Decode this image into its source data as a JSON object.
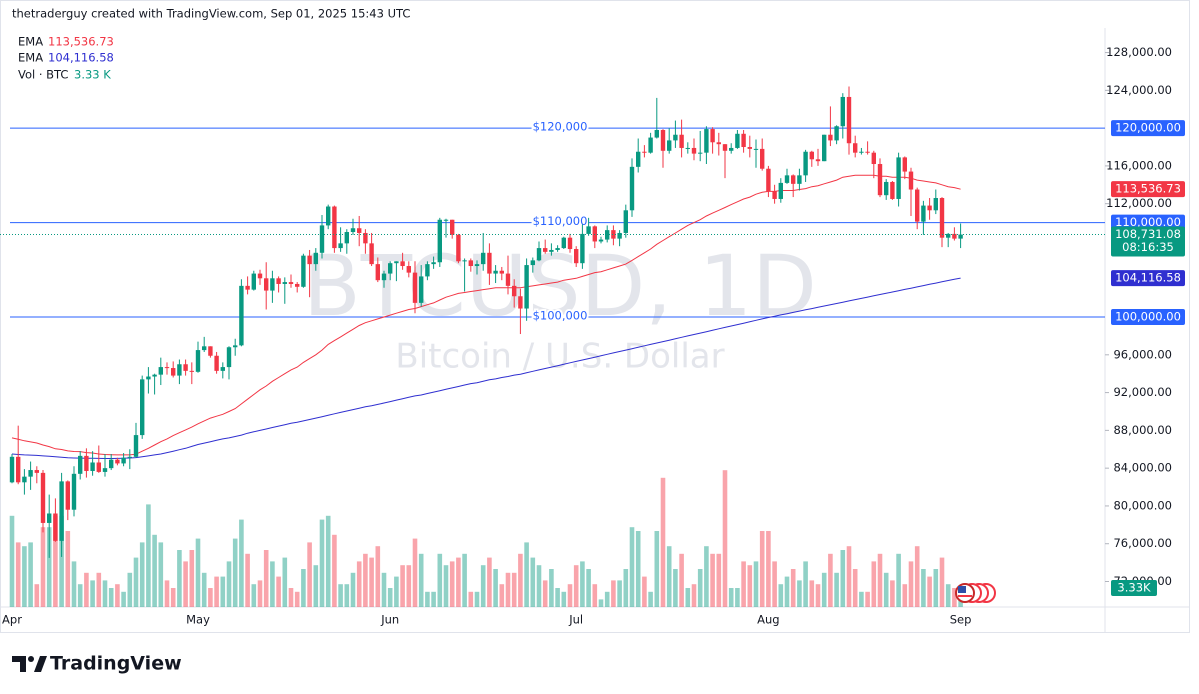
{
  "header": {
    "author_line": "thetraderguy created with TradingView.com, Sep 01, 2025 15:43 UTC",
    "brand": "TradingView"
  },
  "chart_data": {
    "type": "candlestick",
    "watermark_symbol": "BTCUSD, 1D",
    "watermark_name": "Bitcoin / U.S. Dollar",
    "up_color": "#089981",
    "down_color": "#f23645",
    "categories": [
      "Apr",
      null,
      null,
      null,
      null,
      null,
      null,
      null,
      null,
      null,
      null,
      null,
      null,
      null,
      null,
      null,
      null,
      null,
      null,
      null,
      null,
      null,
      null,
      null,
      null,
      null,
      null,
      null,
      null,
      null,
      "May",
      null,
      null,
      null,
      null,
      null,
      null,
      null,
      null,
      null,
      null,
      null,
      null,
      null,
      null,
      null,
      null,
      null,
      null,
      null,
      null,
      null,
      null,
      null,
      null,
      null,
      null,
      null,
      null,
      null,
      null,
      "Jun",
      null,
      null,
      null,
      null,
      null,
      null,
      null,
      null,
      null,
      null,
      null,
      null,
      null,
      null,
      null,
      null,
      null,
      null,
      null,
      null,
      null,
      null,
      null,
      null,
      null,
      null,
      null,
      null,
      null,
      "Jul",
      null,
      null,
      null,
      null,
      null,
      null,
      null,
      null,
      null,
      null,
      null,
      null,
      null,
      null,
      null,
      null,
      null,
      null,
      null,
      null,
      null,
      null,
      null,
      null,
      null,
      null,
      null,
      null,
      null,
      null,
      "Aug",
      null,
      null,
      null,
      null,
      null,
      null,
      null,
      null,
      null,
      null,
      null,
      null,
      null,
      null,
      null,
      null,
      null,
      null,
      null,
      null,
      null,
      null,
      null,
      null,
      null,
      null,
      null,
      null,
      null,
      null,
      "Sep"
    ],
    "open": [
      82500,
      85200,
      82500,
      83100,
      83800,
      83500,
      78200,
      79200,
      76300,
      82600,
      79600,
      83400,
      85300,
      83700,
      84600,
      83600,
      84000,
      84900,
      84500,
      85100,
      85200,
      87500,
      93400,
      93700,
      93900,
      94700,
      94600,
      93800,
      95000,
      94300,
      94200,
      96500,
      96900,
      95900,
      94300,
      94700,
      96800,
      97000,
      103300,
      102900,
      104600,
      104100,
      102800,
      104100,
      103500,
      103700,
      103500,
      103200,
      106500,
      105600,
      106800,
      109700,
      111700,
      107300,
      107800,
      109000,
      109400,
      108900,
      107800,
      105600,
      103900,
      104600,
      105700,
      105900,
      105400,
      104700,
      101500,
      104300,
      105600,
      105800,
      110300,
      110300,
      108700,
      105900,
      106000,
      105400,
      105600,
      106800,
      104600,
      104900,
      104600,
      103300,
      102200,
      100900,
      105500,
      106000,
      107300,
      106900,
      107100,
      107300,
      108400,
      107200,
      105700,
      108800,
      109600,
      108000,
      108200,
      109200,
      108300,
      108900,
      111300,
      115900,
      117500,
      117400,
      119000,
      119800,
      117600,
      118700,
      119300,
      117900,
      117900,
      117300,
      117400,
      119900,
      118500,
      118300,
      117600,
      117900,
      119400,
      118000,
      117800,
      117800,
      115700,
      113300,
      112500,
      114200,
      115000,
      114100,
      115000,
      117500,
      116700,
      116500,
      119300,
      118700,
      120200,
      123300,
      118400,
      117400,
      117500,
      117400,
      116200,
      112900,
      114300,
      112500,
      116900,
      115400,
      113500,
      110100,
      111800,
      111300,
      112600,
      108400,
      108800,
      108300
    ],
    "high": [
      85500,
      88500,
      83900,
      84700,
      84200,
      83800,
      81200,
      80800,
      83500,
      82700,
      84200,
      85800,
      86100,
      85800,
      86400,
      85500,
      85500,
      85100,
      85600,
      86000,
      88800,
      93800,
      94700,
      94000,
      95700,
      95200,
      95300,
      95500,
      95500,
      95200,
      97400,
      97900,
      96900,
      96300,
      95200,
      96900,
      97700,
      104000,
      104300,
      104900,
      105000,
      105800,
      104900,
      104300,
      104200,
      104500,
      103700,
      106700,
      107100,
      107300,
      110800,
      111900,
      111800,
      109500,
      109300,
      110400,
      110700,
      109300,
      108900,
      106300,
      104900,
      105900,
      105900,
      106800,
      105900,
      105900,
      105500,
      105900,
      106400,
      110500,
      110400,
      110300,
      108800,
      106200,
      106200,
      106000,
      108900,
      107800,
      105500,
      105300,
      106500,
      104000,
      103000,
      106200,
      106300,
      108000,
      108200,
      107800,
      107600,
      108500,
      108800,
      107500,
      109800,
      110500,
      109700,
      108500,
      109700,
      109700,
      109200,
      111900,
      116800,
      118900,
      118200,
      119500,
      123200,
      119900,
      120000,
      120800,
      120900,
      118500,
      118900,
      119700,
      120200,
      120100,
      119500,
      118300,
      118400,
      119800,
      119800,
      119200,
      118800,
      118900,
      116000,
      114000,
      114700,
      115700,
      115100,
      115700,
      117700,
      117600,
      117800,
      119300,
      122300,
      120300,
      123700,
      124400,
      119200,
      117900,
      118600,
      117600,
      116800,
      114600,
      114400,
      117400,
      117000,
      115800,
      113700,
      112300,
      112600,
      113500,
      112700,
      108900,
      109500,
      109900
    ],
    "low": [
      82400,
      82300,
      81200,
      81700,
      82400,
      77200,
      74500,
      76200,
      74600,
      78500,
      78900,
      82800,
      83000,
      83200,
      83500,
      83100,
      83800,
      84300,
      84200,
      83900,
      85100,
      87100,
      91900,
      91800,
      92800,
      93900,
      93600,
      92900,
      93800,
      92900,
      94100,
      96300,
      95700,
      94000,
      93500,
      93400,
      95900,
      96900,
      102400,
      102800,
      103400,
      100800,
      101500,
      102600,
      101400,
      103100,
      102600,
      103100,
      102100,
      104900,
      106200,
      109300,
      106800,
      106900,
      106700,
      108700,
      107500,
      106700,
      105400,
      103700,
      103100,
      103900,
      103800,
      105000,
      104200,
      100400,
      101100,
      103900,
      105100,
      105300,
      108400,
      108300,
      105700,
      102700,
      104800,
      104500,
      104900,
      103400,
      103600,
      103900,
      102400,
      101000,
      98200,
      99600,
      104700,
      105900,
      106700,
      106500,
      106900,
      107200,
      106800,
      105300,
      105100,
      108600,
      107300,
      107800,
      107900,
      107600,
      107500,
      108400,
      110600,
      115300,
      116900,
      117300,
      118900,
      115800,
      117300,
      117900,
      116900,
      117300,
      116600,
      116500,
      116200,
      117300,
      117100,
      114700,
      117300,
      117800,
      117400,
      116900,
      115800,
      115500,
      112700,
      112000,
      112100,
      114100,
      112700,
      113400,
      114300,
      115900,
      116000,
      116500,
      118100,
      118300,
      118900,
      117200,
      116900,
      117200,
      117200,
      114700,
      112700,
      112400,
      112400,
      111700,
      114600,
      110700,
      109300,
      108700,
      110300,
      110900,
      107400,
      107400,
      108100,
      107300
    ],
    "close": [
      85200,
      82500,
      83100,
      83800,
      83500,
      78200,
      79200,
      76300,
      82600,
      79600,
      83400,
      85300,
      83700,
      84600,
      83600,
      84000,
      84900,
      84500,
      85100,
      85200,
      87500,
      93400,
      93700,
      93900,
      94700,
      94600,
      93800,
      95000,
      94300,
      94200,
      96500,
      96900,
      95900,
      94300,
      94700,
      96800,
      97000,
      103300,
      102900,
      104600,
      104100,
      102800,
      104100,
      103500,
      103700,
      103500,
      103200,
      106500,
      105600,
      106800,
      109700,
      111700,
      107300,
      107800,
      109000,
      109400,
      108900,
      107800,
      105600,
      103900,
      104600,
      105700,
      105900,
      105400,
      104700,
      101500,
      104300,
      105600,
      105800,
      110300,
      110300,
      108700,
      105900,
      106000,
      105400,
      105600,
      106800,
      104600,
      104900,
      104600,
      103300,
      102200,
      100900,
      105500,
      106000,
      107300,
      106900,
      107100,
      107300,
      108400,
      107200,
      105700,
      108800,
      109600,
      108000,
      108200,
      109200,
      108300,
      108900,
      111300,
      115900,
      117500,
      117400,
      119000,
      119800,
      117600,
      118700,
      119300,
      117900,
      117900,
      117300,
      117400,
      119900,
      118500,
      118300,
      117600,
      117900,
      119400,
      118000,
      117800,
      117800,
      115700,
      113300,
      112500,
      114200,
      115000,
      114100,
      115000,
      117500,
      116700,
      116500,
      119300,
      118700,
      120200,
      123300,
      118400,
      117400,
      117500,
      117400,
      116200,
      112900,
      114300,
      112500,
      116900,
      115400,
      113500,
      110100,
      111800,
      111300,
      112600,
      108400,
      108800,
      108300,
      108731.08
    ],
    "last_close_label": "108,731.08",
    "countdown": "08:16:35",
    "series": [
      {
        "name": "EMA",
        "color": "#f23645",
        "value_label": "113,536.73",
        "values": [
          87200,
          87050,
          86900,
          86780,
          86660,
          86450,
          86280,
          86050,
          85980,
          85830,
          85760,
          85750,
          85650,
          85600,
          85500,
          85450,
          85420,
          85400,
          85400,
          85400,
          85480,
          85800,
          86100,
          86450,
          86800,
          87100,
          87450,
          87750,
          88050,
          88350,
          88700,
          89000,
          89300,
          89500,
          89700,
          90000,
          90300,
          90800,
          91300,
          91800,
          92300,
          92700,
          93200,
          93600,
          94000,
          94400,
          94700,
          95200,
          95600,
          96000,
          96500,
          97100,
          97500,
          97900,
          98300,
          98700,
          99100,
          99400,
          99600,
          99800,
          100000,
          100200,
          100400,
          100600,
          100800,
          100900,
          101100,
          101300,
          101500,
          101800,
          102100,
          102300,
          102500,
          102600,
          102700,
          102800,
          102900,
          103000,
          103100,
          103100,
          103100,
          103100,
          103100,
          103200,
          103300,
          103400,
          103500,
          103600,
          103700,
          103900,
          104000,
          104100,
          104300,
          104500,
          104700,
          104800,
          105000,
          105200,
          105400,
          105600,
          106000,
          106400,
          106800,
          107200,
          107700,
          108100,
          108500,
          108900,
          109300,
          109700,
          110000,
          110300,
          110700,
          111000,
          111300,
          111600,
          111900,
          112200,
          112500,
          112700,
          113000,
          113200,
          113300,
          113300,
          113400,
          113400,
          113400,
          113500,
          113600,
          113800,
          113900,
          114100,
          114300,
          114500,
          114800,
          114900,
          115000,
          115000,
          115000,
          115000,
          114900,
          114900,
          114800,
          114800,
          114800,
          114700,
          114500,
          114400,
          114300,
          114200,
          114000,
          113800,
          113700,
          113536.73
        ]
      },
      {
        "name": "EMA",
        "color": "#2f2fd0",
        "value_label": "104,116.58",
        "values": [
          85500,
          85450,
          85400,
          85380,
          85350,
          85300,
          85250,
          85200,
          85150,
          85100,
          85080,
          85060,
          85050,
          85040,
          85030,
          85020,
          85020,
          85030,
          85050,
          85080,
          85120,
          85200,
          85300,
          85400,
          85500,
          85650,
          85800,
          85950,
          86100,
          86300,
          86500,
          86650,
          86800,
          86950,
          87100,
          87200,
          87350,
          87500,
          87700,
          87850,
          88000,
          88150,
          88300,
          88450,
          88600,
          88750,
          88850,
          89000,
          89150,
          89300,
          89450,
          89600,
          89750,
          89900,
          90050,
          90200,
          90350,
          90500,
          90600,
          90750,
          90900,
          91050,
          91200,
          91350,
          91500,
          91650,
          91750,
          91900,
          92050,
          92200,
          92350,
          92500,
          92650,
          92800,
          92950,
          93050,
          93200,
          93350,
          93450,
          93600,
          93700,
          93850,
          93950,
          94100,
          94250,
          94400,
          94550,
          94700,
          94850,
          95000,
          95150,
          95300,
          95450,
          95600,
          95750,
          95900,
          96050,
          96200,
          96350,
          96500,
          96650,
          96800,
          96950,
          97100,
          97250,
          97400,
          97550,
          97700,
          97850,
          98000,
          98150,
          98300,
          98450,
          98600,
          98750,
          98900,
          99050,
          99200,
          99350,
          99500,
          99650,
          99800,
          99950,
          100085,
          100220,
          100355,
          100490,
          100625,
          100760,
          100895,
          101030,
          101165,
          101300,
          101435,
          101570,
          101705,
          101840,
          101975,
          102110,
          102245,
          102380,
          102515,
          102650,
          102785,
          102920,
          103055,
          103190,
          103325,
          103460,
          103595,
          103730,
          103865,
          104000,
          104116.58
        ]
      }
    ],
    "volume": {
      "name": "Vol · BTC",
      "legend_label": "3.33 K",
      "tag_label": "3.33K",
      "vlim": [
        0,
        50
      ],
      "values": [
        24,
        17,
        16,
        17,
        6,
        21,
        21,
        24,
        24,
        20,
        12,
        6,
        9,
        7,
        9,
        7,
        5,
        6,
        4,
        9,
        13,
        17,
        27,
        19,
        17,
        7,
        5,
        15,
        12,
        15,
        18,
        9,
        5,
        8,
        8,
        12,
        18,
        23,
        14,
        6,
        7,
        15,
        12,
        8,
        13,
        5,
        4,
        10,
        17,
        11,
        23,
        24,
        19,
        6,
        6,
        9,
        12,
        14,
        13,
        16,
        9,
        5,
        8,
        11,
        11,
        18,
        14,
        4,
        4,
        14,
        11,
        12,
        13,
        14,
        4,
        4,
        11,
        13,
        10,
        6,
        9,
        9,
        14,
        17,
        13,
        11,
        7,
        10,
        5,
        4,
        6,
        11,
        12,
        10,
        6,
        2,
        4,
        7,
        7,
        10,
        21,
        20,
        8,
        4,
        20,
        34,
        16,
        10,
        14,
        5,
        6,
        10,
        16,
        14,
        14,
        36,
        5,
        5,
        12,
        11,
        12,
        20,
        20,
        12,
        6,
        8,
        10,
        7,
        12,
        7,
        6,
        9,
        14,
        9,
        15,
        16,
        10,
        4,
        4,
        12,
        14,
        9,
        7,
        14,
        6,
        12,
        16,
        10,
        8,
        10,
        13,
        6,
        5,
        3.33
      ]
    },
    "hline_color": "#2962ff",
    "hlines": [
      {
        "value": 120000,
        "label": "$120,000",
        "tag": "120,000.00"
      },
      {
        "value": 110000,
        "label": "$110,000",
        "tag": "110,000.00"
      },
      {
        "value": 100000,
        "label": "$100,000",
        "tag": "100,000.00"
      }
    ],
    "ylim": [
      69300,
      130600
    ],
    "yticks": [
      {
        "value": 128000,
        "label": "128,000.00"
      },
      {
        "value": 124000,
        "label": "124,000.00"
      },
      {
        "value": 116000,
        "label": "116,000.00"
      },
      {
        "value": 112000,
        "label": "112,000.00"
      },
      {
        "value": 96000,
        "label": "96,000.00"
      },
      {
        "value": 92000,
        "label": "92,000.00"
      },
      {
        "value": 88000,
        "label": "88,000.00"
      },
      {
        "value": 84000,
        "label": "84,000.00"
      },
      {
        "value": 80000,
        "label": "80,000.00"
      },
      {
        "value": 76000,
        "label": "76,000.00"
      },
      {
        "value": 72000,
        "label": "72,000.00"
      }
    ]
  }
}
